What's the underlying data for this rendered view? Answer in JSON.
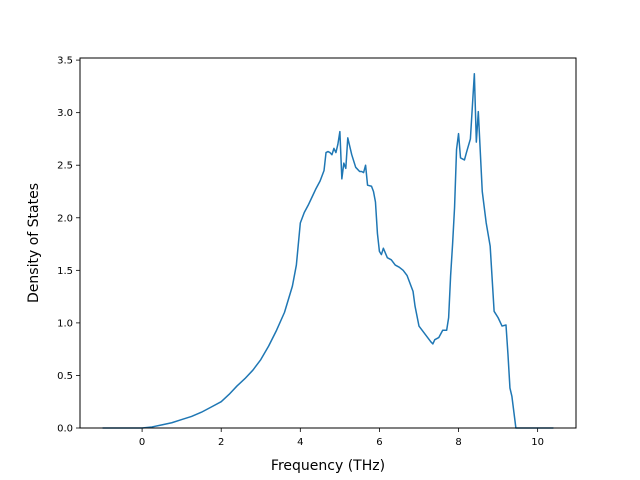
{
  "chart_data": {
    "type": "line",
    "title": "",
    "xlabel": "Frequency (THz)",
    "ylabel": "Density of States",
    "xlim": [
      -1.57,
      10.97
    ],
    "ylim": [
      0,
      3.52
    ],
    "xticks": [
      0,
      2,
      4,
      6,
      8,
      10
    ],
    "yticks": [
      0.0,
      0.5,
      1.0,
      1.5,
      2.0,
      2.5,
      3.0,
      3.5
    ],
    "xtick_labels": [
      "0",
      "2",
      "4",
      "6",
      "8",
      "10"
    ],
    "ytick_labels": [
      "0.0",
      "0.5",
      "1.0",
      "1.5",
      "2.0",
      "2.5",
      "3.0",
      "3.5"
    ],
    "grid": false,
    "legend": false,
    "series": [
      {
        "color": "#1f77b4",
        "x": [
          -1.0,
          -0.5,
          0.0,
          0.25,
          0.5,
          0.75,
          1.0,
          1.25,
          1.5,
          1.75,
          2.0,
          2.2,
          2.4,
          2.6,
          2.8,
          3.0,
          3.2,
          3.4,
          3.6,
          3.8,
          3.9,
          4.0,
          4.1,
          4.2,
          4.3,
          4.4,
          4.5,
          4.6,
          4.65,
          4.7,
          4.75,
          4.8,
          4.85,
          4.9,
          4.95,
          5.0,
          5.05,
          5.1,
          5.15,
          5.2,
          5.3,
          5.4,
          5.5,
          5.55,
          5.6,
          5.65,
          5.7,
          5.8,
          5.85,
          5.9,
          5.95,
          6.0,
          6.05,
          6.1,
          6.2,
          6.3,
          6.4,
          6.5,
          6.6,
          6.7,
          6.8,
          6.85,
          6.9,
          7.0,
          7.1,
          7.2,
          7.3,
          7.35,
          7.4,
          7.5,
          7.6,
          7.7,
          7.75,
          7.8,
          7.85,
          7.9,
          7.95,
          8.0,
          8.05,
          8.1,
          8.15,
          8.2,
          8.3,
          8.4,
          8.45,
          8.5,
          8.55,
          8.6,
          8.7,
          8.8,
          8.9,
          9.0,
          9.1,
          9.2,
          9.25,
          9.3,
          9.35,
          9.4,
          9.45,
          9.5,
          9.7,
          10.0,
          10.4
        ],
        "y": [
          0.0,
          0.0,
          0.0,
          0.01,
          0.03,
          0.05,
          0.08,
          0.11,
          0.15,
          0.2,
          0.25,
          0.32,
          0.4,
          0.47,
          0.55,
          0.65,
          0.78,
          0.93,
          1.1,
          1.35,
          1.55,
          1.95,
          2.05,
          2.12,
          2.2,
          2.28,
          2.35,
          2.45,
          2.62,
          2.63,
          2.62,
          2.6,
          2.66,
          2.62,
          2.7,
          2.82,
          2.37,
          2.52,
          2.47,
          2.76,
          2.6,
          2.48,
          2.44,
          2.44,
          2.43,
          2.5,
          2.31,
          2.3,
          2.25,
          2.15,
          1.85,
          1.68,
          1.65,
          1.71,
          1.62,
          1.6,
          1.55,
          1.53,
          1.5,
          1.45,
          1.35,
          1.3,
          1.16,
          0.97,
          0.92,
          0.87,
          0.82,
          0.8,
          0.84,
          0.86,
          0.93,
          0.93,
          1.05,
          1.45,
          1.75,
          2.1,
          2.65,
          2.8,
          2.57,
          2.56,
          2.55,
          2.62,
          2.75,
          3.37,
          2.72,
          3.01,
          2.63,
          2.25,
          1.95,
          1.73,
          1.11,
          1.05,
          0.97,
          0.98,
          0.7,
          0.38,
          0.3,
          0.15,
          0.0,
          0.0,
          0.0,
          0.0,
          0.0
        ]
      }
    ]
  }
}
